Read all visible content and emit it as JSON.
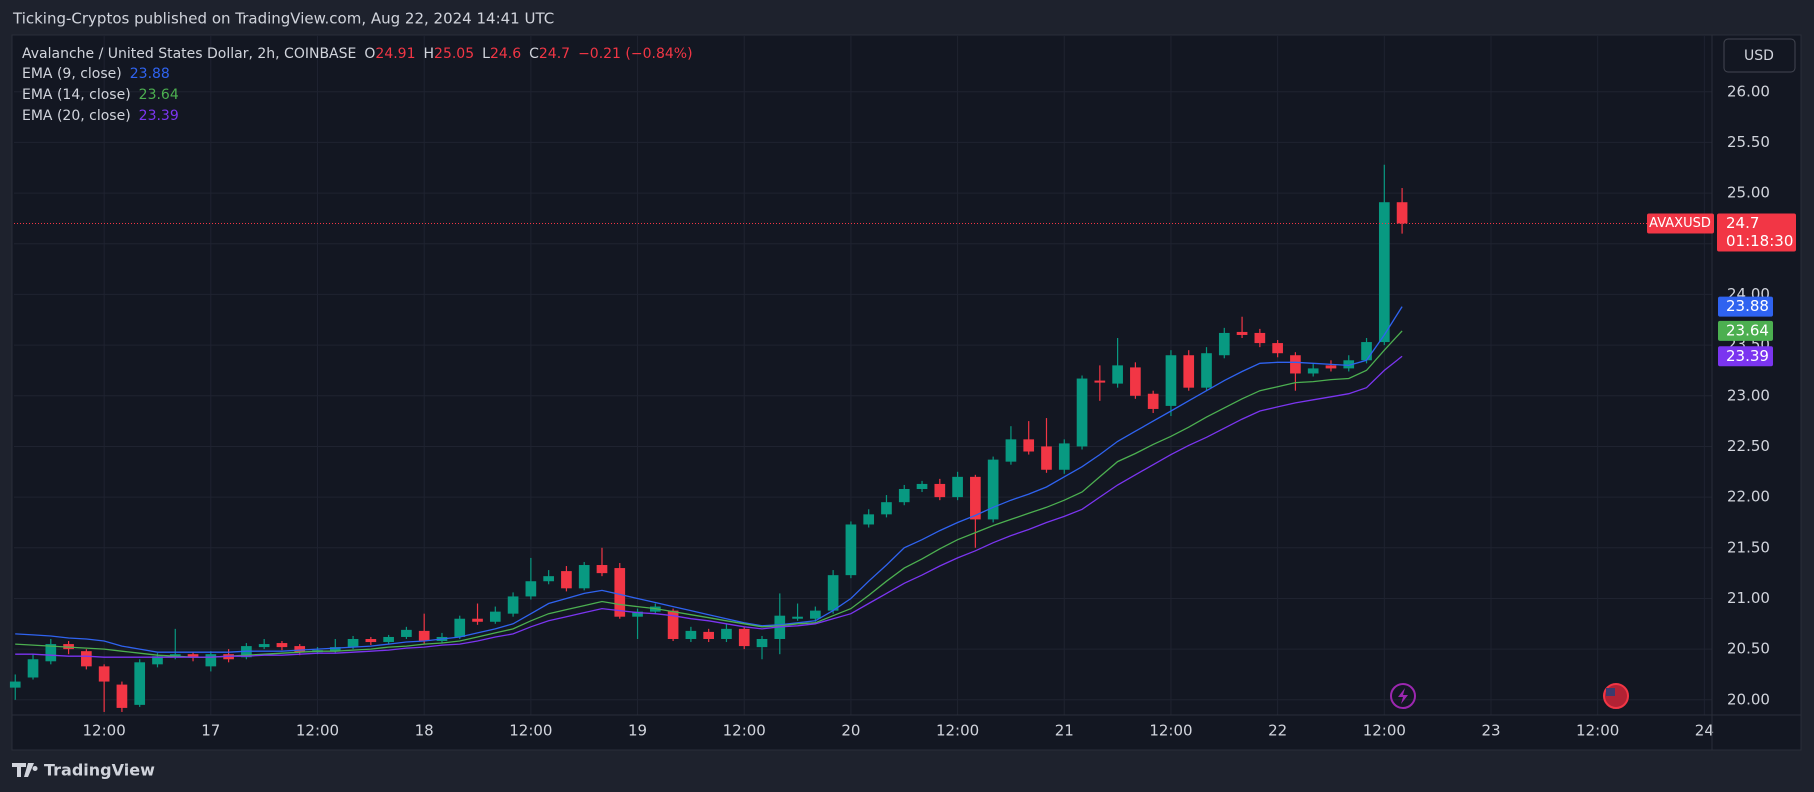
{
  "publisher": "Ticking-Cryptos published on TradingView.com, Aug 22, 2024 14:41 UTC",
  "brand": "TradingView",
  "currency": "USD",
  "chart_data": {
    "type": "candlestick",
    "title": "Avalanche / United States Dollar, 2h, COINBASE",
    "ohlc_prefixes": [
      "O",
      "H",
      "L",
      "C"
    ],
    "change_label": "−0.21 (−0.84%)",
    "countdown": "01:18:30",
    "xlim": [
      -0.07,
      95.43
    ],
    "xticks": [
      {
        "value": 5,
        "label": "12:00"
      },
      {
        "value": 11,
        "label": "17"
      },
      {
        "value": 17,
        "label": "12:00"
      },
      {
        "value": 23,
        "label": "18"
      },
      {
        "value": 29,
        "label": "12:00"
      },
      {
        "value": 35,
        "label": "19"
      },
      {
        "value": 41,
        "label": "12:00"
      },
      {
        "value": 47,
        "label": "20"
      },
      {
        "value": 53,
        "label": "12:00"
      },
      {
        "value": 59,
        "label": "21"
      },
      {
        "value": 65,
        "label": "12:00"
      },
      {
        "value": 71,
        "label": "22"
      },
      {
        "value": 77,
        "label": "12:00"
      },
      {
        "value": 83,
        "label": "23"
      },
      {
        "value": 89,
        "label": "12:00"
      },
      {
        "value": 95,
        "label": "24"
      }
    ],
    "ylim": [
      19.85,
      26.56
    ],
    "yticks": [
      {
        "value": 20,
        "label": "20.00"
      },
      {
        "value": 20.5,
        "label": "20.50"
      },
      {
        "value": 21,
        "label": "21.00"
      },
      {
        "value": 21.5,
        "label": "21.50"
      },
      {
        "value": 22,
        "label": "22.00"
      },
      {
        "value": 22.5,
        "label": "22.50"
      },
      {
        "value": 23,
        "label": "23.00"
      },
      {
        "value": 23.5,
        "label": "23.50"
      },
      {
        "value": 24,
        "label": "24.00"
      },
      {
        "value": 24.5,
        "label": "24.50"
      },
      {
        "value": 25,
        "label": "25.00"
      },
      {
        "value": 25.5,
        "label": "25.50"
      },
      {
        "value": 26,
        "label": "26.00"
      }
    ],
    "grid": true,
    "series": [
      {
        "name": "AVAXUSD",
        "up_color": "#089981",
        "down_color": "#f23645",
        "open": [
          20.12,
          20.22,
          20.38,
          20.55,
          20.48,
          20.33,
          20.15,
          19.95,
          20.35,
          20.42,
          20.45,
          20.33,
          20.45,
          20.42,
          20.52,
          20.56,
          20.53,
          20.47,
          20.48,
          20.52,
          20.6,
          20.57,
          20.62,
          20.68,
          20.58,
          20.62,
          20.8,
          20.77,
          20.85,
          21.02,
          21.17,
          21.27,
          21.1,
          21.33,
          21.3,
          20.82,
          20.87,
          20.88,
          20.6,
          20.67,
          20.6,
          20.7,
          20.52,
          20.6,
          20.8,
          20.8,
          20.88,
          21.23,
          21.73,
          21.83,
          21.95,
          22.08,
          22.13,
          22.0,
          22.2,
          21.78,
          22.35,
          22.57,
          22.5,
          22.27,
          22.5,
          23.15,
          23.12,
          23.28,
          23.02,
          22.9,
          23.4,
          23.08,
          23.4,
          23.63,
          23.62,
          23.52,
          23.4,
          23.22,
          23.3,
          23.27,
          23.35,
          23.53,
          24.91
        ],
        "high": [
          20.25,
          20.45,
          20.6,
          20.58,
          20.5,
          20.35,
          20.18,
          20.4,
          20.46,
          20.7,
          20.47,
          20.48,
          20.5,
          20.56,
          20.6,
          20.58,
          20.55,
          20.52,
          20.6,
          20.63,
          20.62,
          20.64,
          20.72,
          20.85,
          20.66,
          20.83,
          20.95,
          20.92,
          21.06,
          21.4,
          21.28,
          21.32,
          21.36,
          21.5,
          21.35,
          20.9,
          20.95,
          20.9,
          20.72,
          20.7,
          20.75,
          20.72,
          20.63,
          21.05,
          20.95,
          20.92,
          21.28,
          21.76,
          21.88,
          22.02,
          22.12,
          22.16,
          22.18,
          22.25,
          22.22,
          22.4,
          22.7,
          22.75,
          22.78,
          22.57,
          23.2,
          23.3,
          23.57,
          23.33,
          23.05,
          23.45,
          23.45,
          23.48,
          23.67,
          23.78,
          23.66,
          23.55,
          23.43,
          23.32,
          23.35,
          23.4,
          23.57,
          25.28,
          25.05
        ],
        "low": [
          20.0,
          20.2,
          20.35,
          20.45,
          20.3,
          19.88,
          19.88,
          19.93,
          20.32,
          20.4,
          20.38,
          20.28,
          20.37,
          20.4,
          20.5,
          20.49,
          20.44,
          20.45,
          20.46,
          20.5,
          20.54,
          20.55,
          20.6,
          20.55,
          20.56,
          20.6,
          20.74,
          20.75,
          20.82,
          20.99,
          21.14,
          21.07,
          21.08,
          21.22,
          20.8,
          20.6,
          20.85,
          20.58,
          20.57,
          20.57,
          20.57,
          20.5,
          20.4,
          20.45,
          20.78,
          20.77,
          20.85,
          21.2,
          21.7,
          21.8,
          21.92,
          22.05,
          21.97,
          21.97,
          21.5,
          21.75,
          22.32,
          22.42,
          22.24,
          22.23,
          22.47,
          22.95,
          23.08,
          22.97,
          22.83,
          22.8,
          23.05,
          23.05,
          23.37,
          23.57,
          23.48,
          23.38,
          23.05,
          23.19,
          23.24,
          23.24,
          23.32,
          23.5,
          24.6
        ],
        "close": [
          20.18,
          20.4,
          20.55,
          20.5,
          20.33,
          20.18,
          19.92,
          20.37,
          20.43,
          20.45,
          20.42,
          20.45,
          20.4,
          20.53,
          20.55,
          20.52,
          20.47,
          20.49,
          20.52,
          20.6,
          20.57,
          20.62,
          20.69,
          20.58,
          20.62,
          20.8,
          20.77,
          20.87,
          21.02,
          21.17,
          21.22,
          21.1,
          21.33,
          21.25,
          20.82,
          20.87,
          20.92,
          20.6,
          20.68,
          20.6,
          20.7,
          20.53,
          20.6,
          20.83,
          20.82,
          20.88,
          21.23,
          21.73,
          21.83,
          21.95,
          22.08,
          22.13,
          22.0,
          22.2,
          21.78,
          22.37,
          22.57,
          22.45,
          22.27,
          22.53,
          23.17,
          23.13,
          23.3,
          23.0,
          22.87,
          23.4,
          23.08,
          23.42,
          23.62,
          23.6,
          23.52,
          23.42,
          23.22,
          23.27,
          23.27,
          23.35,
          23.53,
          24.91,
          24.7
        ]
      },
      {
        "name": "EMA (9, close)",
        "color": "#2f63f0",
        "values": [
          20.65,
          20.64,
          20.63,
          20.61,
          20.6,
          20.58,
          20.53,
          20.5,
          20.47,
          20.47,
          20.47,
          20.47,
          20.47,
          20.48,
          20.48,
          20.48,
          20.49,
          20.5,
          20.51,
          20.52,
          20.53,
          20.55,
          20.57,
          20.58,
          20.6,
          20.62,
          20.66,
          20.7,
          20.75,
          20.85,
          20.95,
          21.0,
          21.05,
          21.08,
          21.04,
          21.0,
          20.96,
          20.92,
          20.88,
          20.84,
          20.8,
          20.76,
          20.73,
          20.74,
          20.76,
          20.78,
          20.88,
          21.0,
          21.17,
          21.33,
          21.5,
          21.58,
          21.67,
          21.75,
          21.82,
          21.9,
          21.97,
          22.03,
          22.1,
          22.2,
          22.3,
          22.42,
          22.55,
          22.65,
          22.75,
          22.85,
          22.95,
          23.05,
          23.15,
          23.24,
          23.32,
          23.33,
          23.33,
          23.32,
          23.31,
          23.3,
          23.35,
          23.6,
          23.88
        ]
      },
      {
        "name": "EMA (14, close)",
        "color": "#4caf50",
        "values": [
          20.55,
          20.54,
          20.53,
          20.52,
          20.51,
          20.5,
          20.48,
          20.46,
          20.44,
          20.43,
          20.42,
          20.42,
          20.43,
          20.44,
          20.45,
          20.46,
          20.47,
          20.48,
          20.48,
          20.49,
          20.5,
          20.52,
          20.53,
          20.55,
          20.56,
          20.58,
          20.62,
          20.66,
          20.7,
          20.78,
          20.85,
          20.89,
          20.93,
          20.97,
          20.94,
          20.92,
          20.9,
          20.87,
          20.84,
          20.81,
          20.78,
          20.75,
          20.72,
          20.73,
          20.75,
          20.76,
          20.83,
          20.9,
          21.03,
          21.17,
          21.3,
          21.39,
          21.49,
          21.58,
          21.65,
          21.72,
          21.78,
          21.84,
          21.9,
          21.97,
          22.05,
          22.2,
          22.35,
          22.43,
          22.52,
          22.6,
          22.69,
          22.79,
          22.88,
          22.97,
          23.05,
          23.09,
          23.13,
          23.14,
          23.16,
          23.17,
          23.25,
          23.45,
          23.64
        ]
      },
      {
        "name": "EMA (20, close)",
        "color": "#7b35f0",
        "values": [
          20.45,
          20.45,
          20.44,
          20.43,
          20.43,
          20.42,
          20.42,
          20.42,
          20.42,
          20.42,
          20.42,
          20.42,
          20.43,
          20.43,
          20.44,
          20.44,
          20.45,
          20.46,
          20.46,
          20.47,
          20.48,
          20.49,
          20.51,
          20.52,
          20.54,
          20.55,
          20.58,
          20.62,
          20.65,
          20.72,
          20.78,
          20.82,
          20.86,
          20.9,
          20.88,
          20.86,
          20.85,
          20.83,
          20.8,
          20.78,
          20.75,
          20.72,
          20.7,
          20.72,
          20.73,
          20.75,
          20.8,
          20.85,
          20.95,
          21.05,
          21.15,
          21.23,
          21.32,
          21.4,
          21.47,
          21.55,
          21.62,
          21.68,
          21.75,
          21.81,
          21.88,
          22.0,
          22.12,
          22.22,
          22.32,
          22.42,
          22.51,
          22.59,
          22.68,
          22.77,
          22.85,
          22.89,
          22.93,
          22.96,
          22.99,
          23.02,
          23.08,
          23.25,
          23.39
        ]
      }
    ]
  }
}
